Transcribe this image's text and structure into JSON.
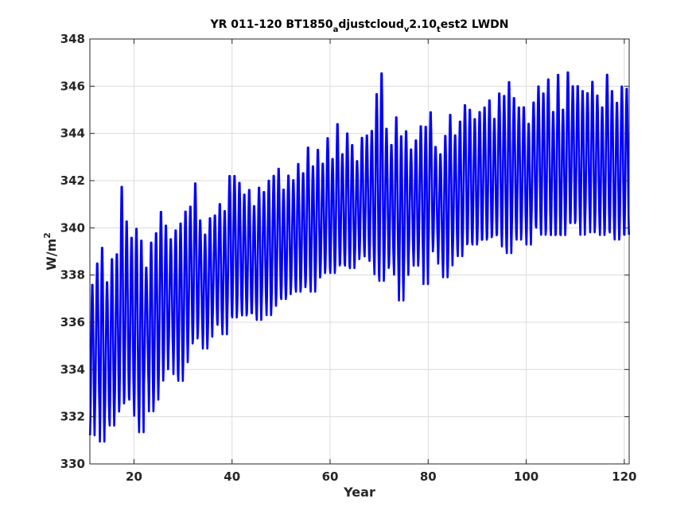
{
  "chart_data": {
    "type": "line",
    "title": {
      "parts": [
        {
          "text": "YR 011-120 BT1850",
          "sub": false
        },
        {
          "text": "a",
          "sub": true
        },
        {
          "text": "djustcloud",
          "sub": false
        },
        {
          "text": "v",
          "sub": true
        },
        {
          "text": "2.10",
          "sub": false
        },
        {
          "text": "t",
          "sub": true
        },
        {
          "text": "est2 LWDN",
          "sub": false
        }
      ]
    },
    "xlabel": "Year",
    "ylabel": {
      "base": "W/m",
      "sup": "2"
    },
    "xlim": [
      11,
      121
    ],
    "ylim": [
      330,
      348
    ],
    "xticks": [
      20,
      40,
      60,
      80,
      100,
      120
    ],
    "yticks": [
      330,
      332,
      334,
      336,
      338,
      340,
      342,
      344,
      346,
      348
    ],
    "grid": true,
    "line_color": "#0000ff",
    "series": [
      {
        "samples_per_year": 12,
        "x_start": 11.04,
        "annual_peaks": [
          337.7,
          338.6,
          339.3,
          337.8,
          338.8,
          339.0,
          341.9,
          340.4,
          339.7,
          340.1,
          339.6,
          338.4,
          339.5,
          339.9,
          340.8,
          340.2,
          339.6,
          340.0,
          340.3,
          340.8,
          341.0,
          342.0,
          340.4,
          339.8,
          340.5,
          340.6,
          341.1,
          340.8,
          342.3,
          342.3,
          342.0,
          341.5,
          341.7,
          341.0,
          341.8,
          341.6,
          342.1,
          342.3,
          342.6,
          341.7,
          342.3,
          342.1,
          342.8,
          342.4,
          343.5,
          342.7,
          343.4,
          342.8,
          343.9,
          343.0,
          344.5,
          343.2,
          344.1,
          343.6,
          342.9,
          343.9,
          344.0,
          344.2,
          345.8,
          346.7,
          344.3,
          343.6,
          344.8,
          344.0,
          344.2,
          343.4,
          343.8,
          344.4,
          344.4,
          345.0,
          343.5,
          343.2,
          344.0,
          344.9,
          344.0,
          344.6,
          345.3,
          345.1,
          344.7,
          345.0,
          345.2,
          345.5,
          344.7,
          345.8,
          345.7,
          346.3,
          345.6,
          345.2,
          345.2,
          344.5,
          345.4,
          346.1,
          345.8,
          346.4,
          345.0,
          346.6,
          345.1,
          346.7,
          346.1,
          346.1,
          345.9,
          345.8,
          346.3,
          345.7,
          345.2,
          346.6,
          345.9,
          345.4,
          346.1,
          346.0
        ],
        "annual_troughs": [
          331.1,
          332.1,
          330.8,
          331.8,
          331.5,
          332.1,
          332.4,
          332.7,
          332.6,
          331.9,
          331.2,
          333.3,
          332.1,
          332.6,
          333.4,
          333.9,
          334.6,
          333.7,
          333.4,
          334.2,
          335.0,
          335.2,
          335.5,
          334.8,
          335.3,
          336.0,
          335.8,
          335.4,
          336.2,
          336.1,
          336.4,
          336.2,
          336.3,
          336.3,
          336.0,
          336.7,
          336.2,
          336.6,
          337.0,
          336.9,
          337.1,
          337.4,
          337.2,
          337.4,
          337.6,
          337.2,
          337.8,
          338.0,
          338.2,
          338.0,
          338.3,
          338.4,
          338.3,
          338.2,
          338.6,
          338.9,
          338.7,
          338.5,
          337.9,
          337.6,
          338.2,
          338.4,
          337.9,
          336.8,
          337.9,
          338.8,
          338.3,
          338.6,
          337.5,
          338.9,
          339.2,
          338.4,
          337.8,
          338.3,
          339.0,
          338.7,
          339.2,
          339.3,
          339.2,
          339.4,
          339.4,
          339.5,
          339.6,
          339.6,
          339.1,
          338.8,
          339.6,
          339.4,
          339.8,
          339.2,
          340.0,
          339.9,
          339.6,
          339.8,
          339.6,
          339.6,
          339.6,
          340.1,
          340.1,
          340.2,
          339.6,
          340.3,
          339.7,
          340.0,
          339.6,
          339.8,
          339.7,
          339.4,
          339.6,
          339.6
        ]
      }
    ]
  }
}
